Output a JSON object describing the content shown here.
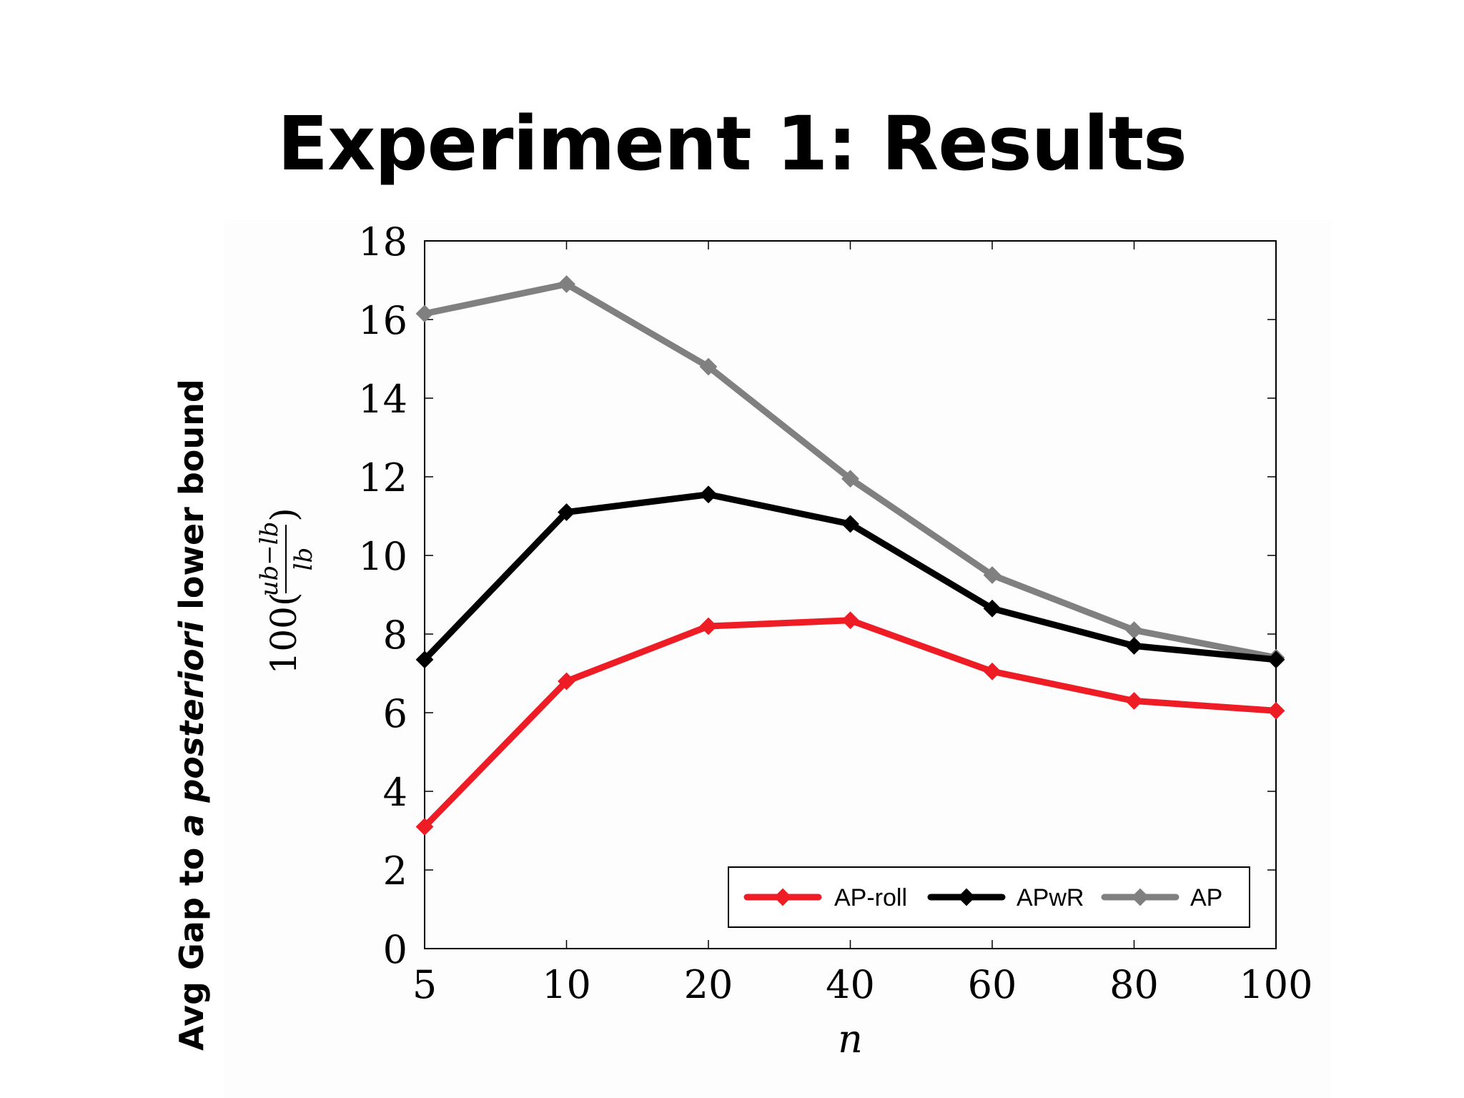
{
  "slide": {
    "title": "Experiment 1: Results",
    "ylabel_prefix": "Avg Gap to ",
    "ylabel_italic": "a posteriori",
    "ylabel_suffix": " lower bound"
  },
  "chart_data": {
    "type": "line",
    "title": "",
    "xlabel": "n",
    "ylabel": "100( ub−lb / lb )",
    "ylabel_parts": {
      "prefix": "100(",
      "numerator": "ub−lb",
      "denominator": "lb",
      "suffix": ")"
    },
    "x_scale": "categorical",
    "categories": [
      "5",
      "10",
      "20",
      "40",
      "60",
      "80",
      "100"
    ],
    "ylim": [
      0,
      18
    ],
    "yticks": [
      0,
      2,
      4,
      6,
      8,
      10,
      12,
      14,
      16,
      18
    ],
    "grid": false,
    "legend": {
      "position": "bottom-right",
      "layout": "horizontal"
    },
    "series": [
      {
        "name": "AP-roll",
        "color": "#ee1c25",
        "values": [
          3.1,
          6.8,
          8.2,
          8.35,
          7.05,
          6.3,
          6.05
        ]
      },
      {
        "name": "APwR",
        "color": "#000000",
        "values": [
          7.35,
          11.1,
          11.55,
          10.8,
          8.65,
          7.7,
          7.35
        ]
      },
      {
        "name": "AP",
        "color": "#808080",
        "values": [
          16.15,
          16.9,
          14.8,
          11.95,
          9.5,
          8.1,
          7.4
        ]
      }
    ]
  }
}
